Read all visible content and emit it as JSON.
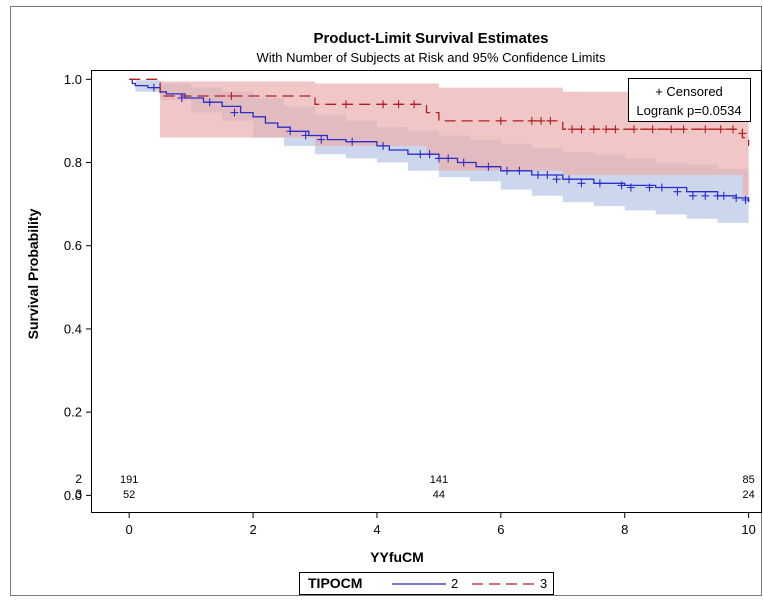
{
  "chart_data": {
    "type": "line",
    "title": "Product-Limit Survival Estimates",
    "subtitle": "With Number of Subjects at Risk and 95% Confidence Limits",
    "xlabel": "YYfuCM",
    "ylabel": "Survival Probability",
    "xlim": [
      -0.6,
      10.2
    ],
    "ylim": [
      -0.04,
      1.02
    ],
    "x_ticks": [
      "0",
      "2",
      "4",
      "6",
      "8",
      "10"
    ],
    "y_ticks": [
      "0.0",
      "0.2",
      "0.4",
      "0.6",
      "0.8",
      "1.0"
    ],
    "grid": false,
    "inset_legend": {
      "placement": "top-right",
      "censored_label": "+ Censored",
      "logrank_label": "Logrank p=0.0534"
    },
    "legend": {
      "placement": "bottom-center",
      "title": "TIPOCM",
      "entries": [
        "2",
        "3"
      ]
    },
    "at_risk": {
      "times": [
        0,
        5,
        10
      ],
      "rows": [
        {
          "group": "2",
          "counts": [
            "191",
            "141",
            "85"
          ]
        },
        {
          "group": "3",
          "counts": [
            "52",
            "44",
            "24"
          ]
        }
      ]
    },
    "series": [
      {
        "name": "2",
        "color": "#2c2cc8",
        "band_color": "#b9c8e8",
        "step": {
          "x": [
            0,
            0.05,
            0.1,
            0.3,
            0.5,
            0.6,
            0.9,
            1.2,
            1.5,
            1.8,
            2.0,
            2.2,
            2.4,
            2.6,
            2.9,
            3.2,
            3.5,
            4.0,
            4.2,
            4.5,
            5.0,
            5.3,
            5.6,
            6.0,
            6.5,
            7.0,
            7.5,
            8.0,
            8.5,
            9.0,
            9.5,
            9.8,
            10.0
          ],
          "y": [
            1.0,
            0.99,
            0.985,
            0.98,
            0.97,
            0.965,
            0.955,
            0.945,
            0.935,
            0.92,
            0.91,
            0.895,
            0.885,
            0.875,
            0.865,
            0.855,
            0.85,
            0.84,
            0.83,
            0.82,
            0.81,
            0.8,
            0.79,
            0.78,
            0.77,
            0.76,
            0.75,
            0.745,
            0.74,
            0.73,
            0.72,
            0.715,
            0.705
          ]
        },
        "upper": {
          "x": [
            0,
            0.1,
            0.5,
            1.0,
            1.5,
            2.0,
            2.5,
            3.0,
            3.5,
            4.0,
            4.5,
            5.0,
            5.5,
            6.0,
            6.5,
            7.0,
            7.5,
            8.0,
            8.5,
            9.0,
            9.5,
            10.0
          ],
          "y": [
            1.0,
            0.998,
            0.99,
            0.98,
            0.97,
            0.955,
            0.935,
            0.915,
            0.9,
            0.885,
            0.875,
            0.865,
            0.855,
            0.845,
            0.835,
            0.825,
            0.82,
            0.81,
            0.8,
            0.795,
            0.785,
            0.775
          ]
        },
        "lower": {
          "x": [
            0,
            0.1,
            0.5,
            1.0,
            1.5,
            2.0,
            2.5,
            3.0,
            3.5,
            4.0,
            4.5,
            5.0,
            5.5,
            6.0,
            6.5,
            7.0,
            7.5,
            8.0,
            8.5,
            9.0,
            9.5,
            10.0
          ],
          "y": [
            1.0,
            0.97,
            0.95,
            0.92,
            0.9,
            0.86,
            0.84,
            0.82,
            0.81,
            0.8,
            0.78,
            0.765,
            0.755,
            0.735,
            0.72,
            0.705,
            0.695,
            0.685,
            0.675,
            0.665,
            0.655,
            0.64
          ]
        },
        "censored": {
          "x": [
            0.4,
            0.85,
            1.3,
            1.7,
            2.6,
            2.85,
            3.1,
            3.6,
            4.1,
            4.7,
            4.85,
            5.0,
            5.15,
            5.4,
            5.8,
            6.1,
            6.3,
            6.6,
            6.75,
            6.9,
            7.1,
            7.3,
            7.6,
            7.95,
            8.1,
            8.4,
            8.6,
            8.85,
            9.1,
            9.3,
            9.5,
            9.6,
            9.8,
            9.95
          ],
          "y": [
            0.98,
            0.955,
            0.945,
            0.92,
            0.875,
            0.865,
            0.855,
            0.85,
            0.84,
            0.82,
            0.82,
            0.81,
            0.81,
            0.8,
            0.79,
            0.78,
            0.78,
            0.77,
            0.77,
            0.76,
            0.76,
            0.75,
            0.75,
            0.745,
            0.74,
            0.74,
            0.74,
            0.73,
            0.72,
            0.72,
            0.72,
            0.72,
            0.715,
            0.71
          ]
        }
      },
      {
        "name": "3",
        "color": "#b02020",
        "band_color": "#eab0b0",
        "step": {
          "x": [
            0,
            0.5,
            3.0,
            4.8,
            5.0,
            7.0,
            9.9,
            10.0
          ],
          "y": [
            1.0,
            0.96,
            0.94,
            0.92,
            0.9,
            0.88,
            0.86,
            0.84
          ]
        },
        "upper": {
          "x": [
            0,
            0.5,
            3.0,
            5.0,
            7.0,
            9.9,
            10.0
          ],
          "y": [
            1.0,
            0.995,
            0.99,
            0.98,
            0.97,
            0.96,
            0.955
          ]
        },
        "lower": {
          "x": [
            0,
            0.5,
            3.0,
            4.8,
            5.0,
            7.0,
            9.9,
            10.0
          ],
          "y": [
            1.0,
            0.86,
            0.84,
            0.82,
            0.78,
            0.77,
            0.72,
            0.69
          ]
        },
        "censored": {
          "x": [
            1.65,
            3.5,
            4.1,
            4.35,
            4.6,
            6.0,
            6.5,
            6.65,
            6.8,
            7.15,
            7.3,
            7.5,
            7.7,
            7.85,
            8.15,
            8.45,
            8.75,
            8.95,
            9.3,
            9.55,
            9.75,
            9.9
          ],
          "y": [
            0.96,
            0.94,
            0.94,
            0.94,
            0.94,
            0.9,
            0.9,
            0.9,
            0.9,
            0.88,
            0.88,
            0.88,
            0.88,
            0.88,
            0.88,
            0.88,
            0.88,
            0.88,
            0.88,
            0.88,
            0.88,
            0.87
          ]
        }
      }
    ]
  }
}
